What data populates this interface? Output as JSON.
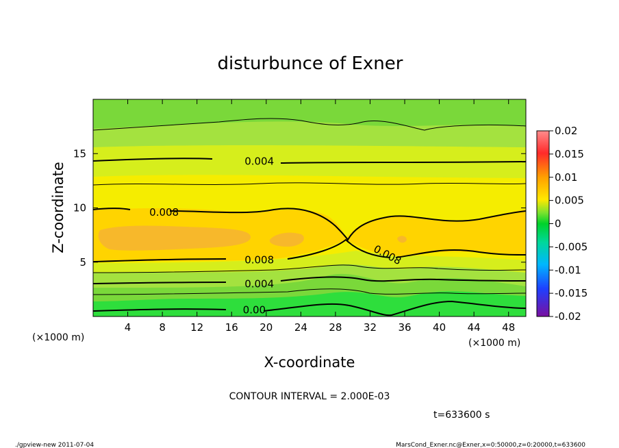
{
  "chart_data": {
    "type": "heatmap",
    "title": "disturbunce of Exner",
    "xlabel": "X-coordinate",
    "ylabel": "Z-coordinate",
    "x_unit": "(×1000 m)",
    "y_unit": "(×1000 m)",
    "xlim": [
      0,
      50
    ],
    "ylim": [
      0,
      20
    ],
    "x_ticks": [
      "4",
      "8",
      "12",
      "16",
      "20",
      "24",
      "28",
      "32",
      "36",
      "40",
      "44",
      "48"
    ],
    "y_ticks": [
      "5",
      "10",
      "15"
    ],
    "colorbar": {
      "range": [
        -0.02,
        0.02
      ],
      "ticks": [
        "0.02",
        "0.015",
        "0.01",
        "0.005",
        "0",
        "-0.005",
        "-0.01",
        "-0.015",
        "-0.02"
      ]
    },
    "contour_interval": "CONTOUR INTERVAL = 2.000E-03",
    "contour_labels": [
      {
        "text": "0.004",
        "x": 17.5,
        "z": 14.3
      },
      {
        "text": "0.008",
        "x": 6.5,
        "z": 9.6
      },
      {
        "text": "0.008",
        "x": 32.5,
        "z": 6.3
      },
      {
        "text": "0.008",
        "x": 17.5,
        "z": 5.2
      },
      {
        "text": "0.004",
        "x": 17.5,
        "z": 3.0
      },
      {
        "text": "0.00",
        "x": 17.3,
        "z": 0.6
      }
    ],
    "colors": {
      "max_fill": "#f7a72b",
      "high_fill": "#ffd400",
      "mid_fill": "#f5ed00",
      "low_fill": "#a4e23f",
      "zero_fill": "#2ede3c"
    },
    "timestamp": "t=633600 s"
  },
  "footer": {
    "left": "./gpview-new   2011-07-04",
    "right": "MarsCond_Exner.nc@Exner,x=0:50000,z=0:20000,t=633600"
  }
}
